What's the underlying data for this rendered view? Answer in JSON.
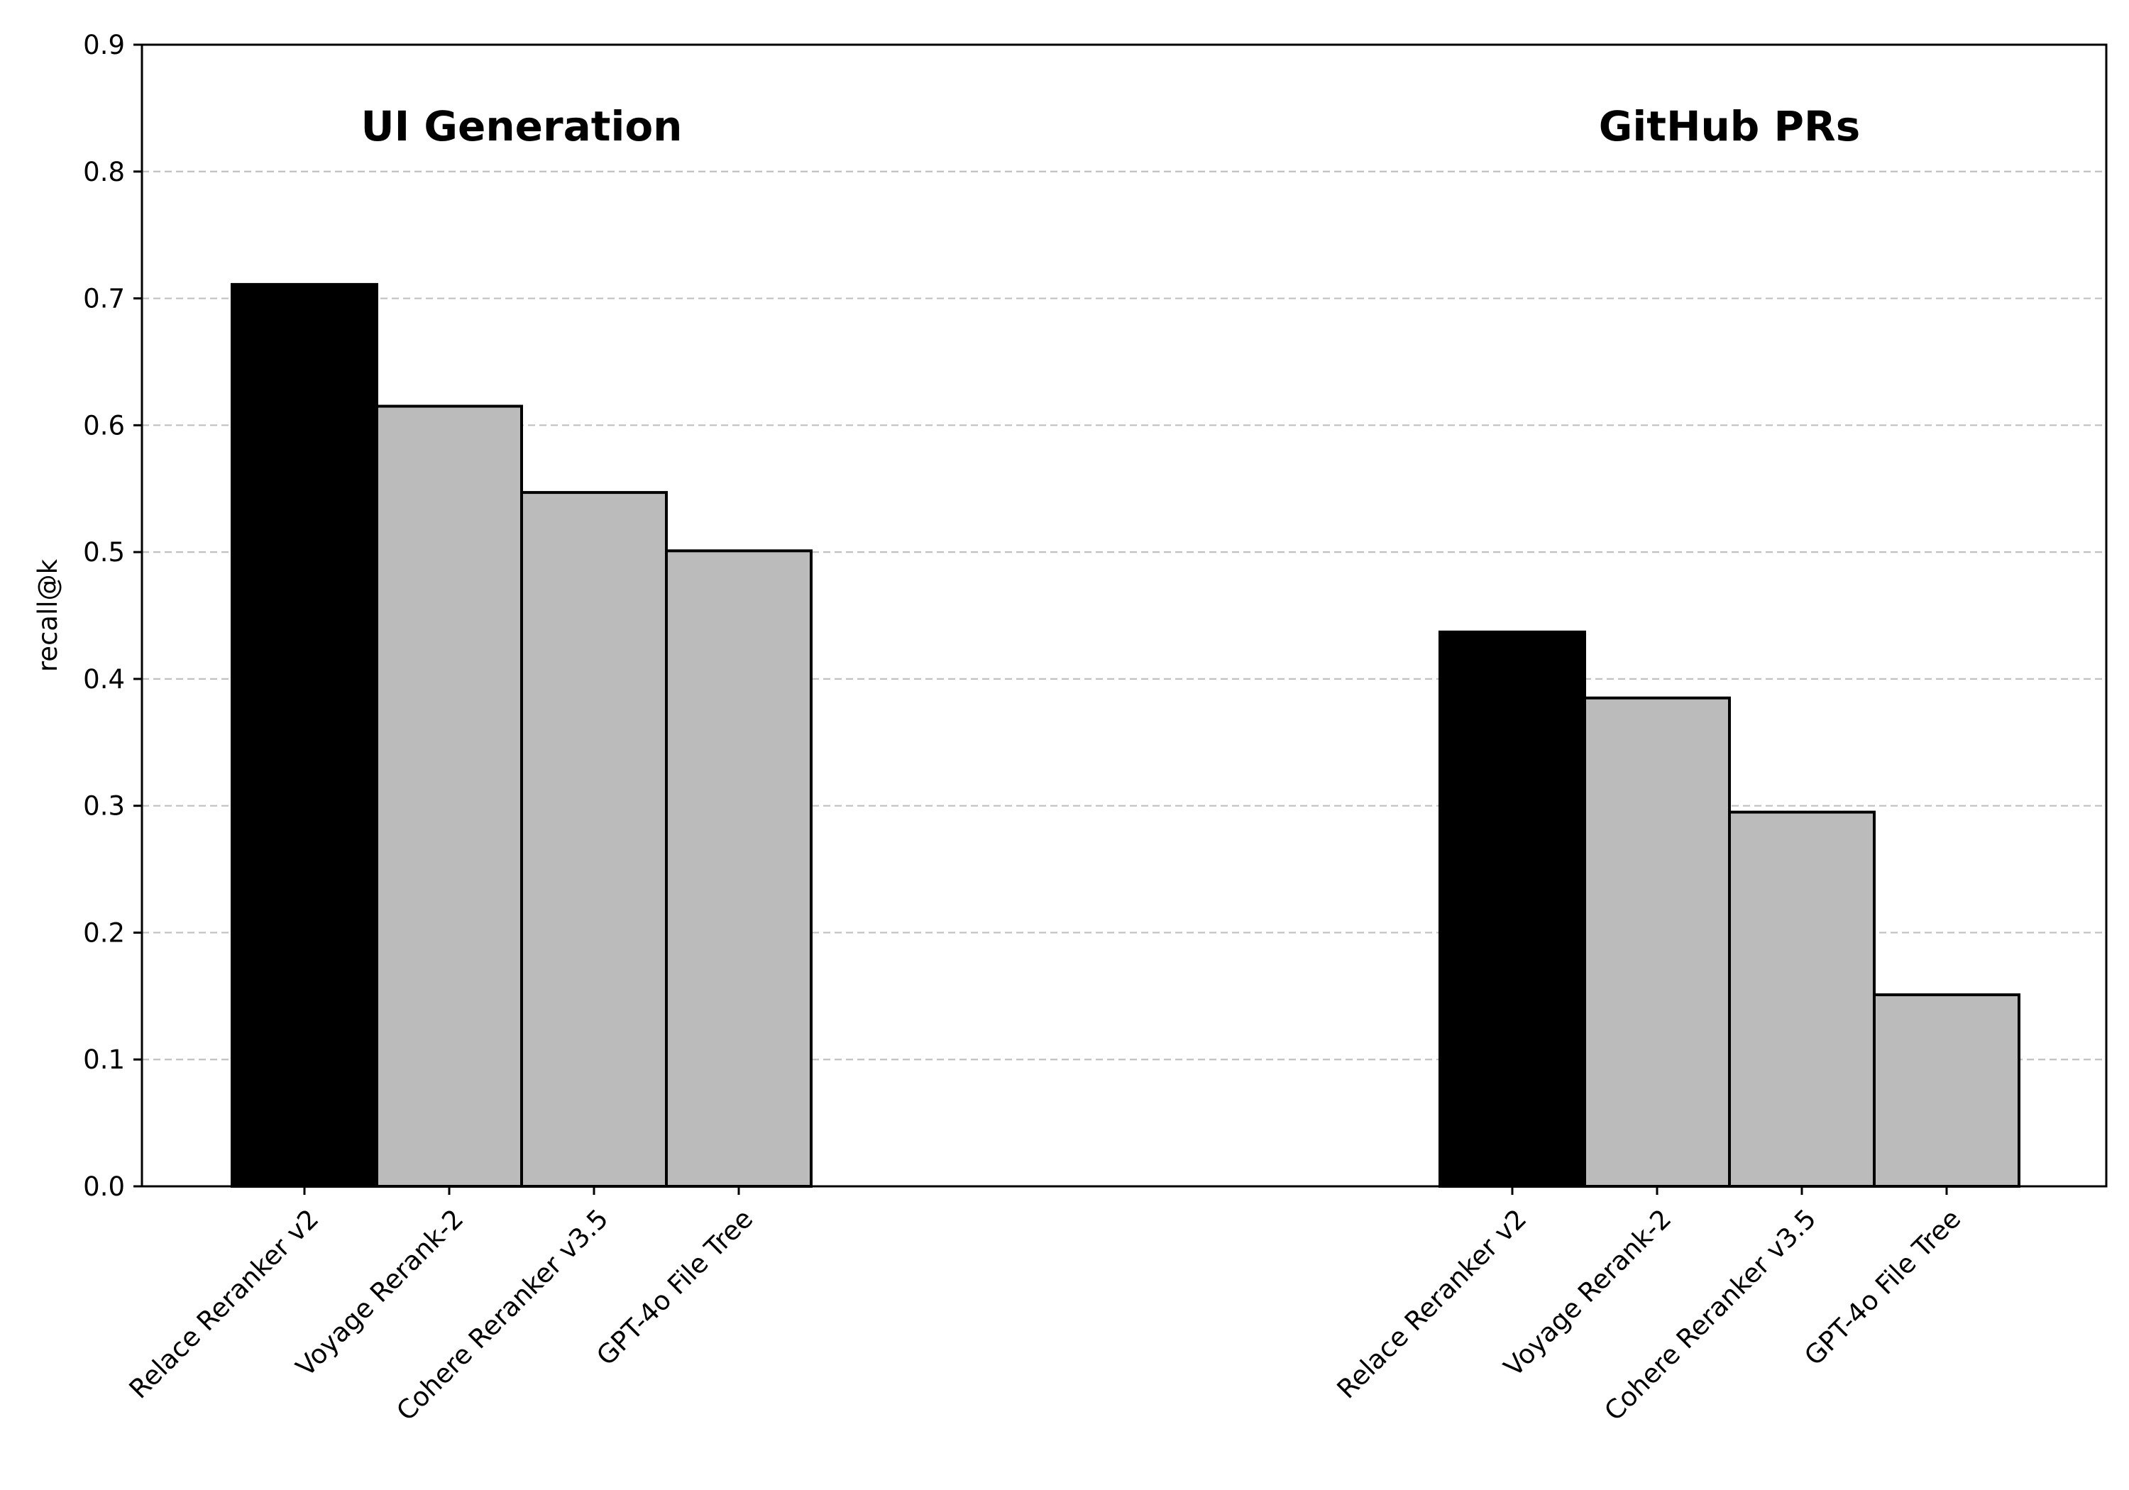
{
  "chart_data": {
    "type": "bar",
    "ylabel": "recall@k",
    "ylim": [
      0,
      0.9
    ],
    "yticks": [
      "0.0",
      "0.1",
      "0.2",
      "0.3",
      "0.4",
      "0.5",
      "0.6",
      "0.7",
      "0.8",
      "0.9"
    ],
    "grid": "horizontal dashed",
    "colors": {
      "highlight": "#000000",
      "other": "#bbbbbb",
      "edge": "#000000",
      "grid": "#c0c0c0"
    },
    "groups": [
      {
        "title": "UI Generation",
        "categories": [
          "Relace Reranker v2",
          "Voyage Rerank-2",
          "Cohere Reranker v3.5",
          "GPT-4o File Tree"
        ],
        "values": [
          0.711,
          0.615,
          0.547,
          0.501
        ]
      },
      {
        "title": "GitHub PRs",
        "categories": [
          "Relace Reranker v2",
          "Voyage Rerank-2",
          "Cohere Reranker v3.5",
          "GPT-4o File Tree"
        ],
        "values": [
          0.437,
          0.385,
          0.295,
          0.151
        ]
      }
    ]
  }
}
